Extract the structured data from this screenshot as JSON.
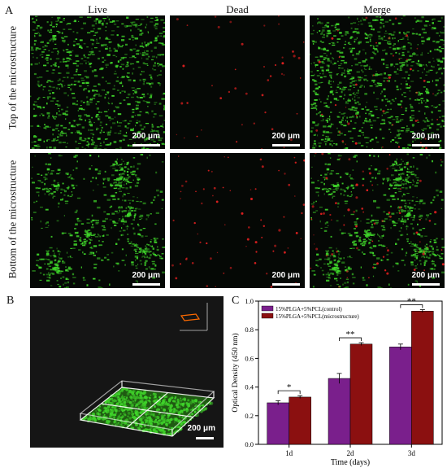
{
  "panels": {
    "a": "A",
    "b": "B",
    "c": "C"
  },
  "columns": [
    "Live",
    "Dead",
    "Merge"
  ],
  "rows": [
    "Top of the microstructure",
    "Bottom of the microstructure"
  ],
  "scale_label": "200 μm",
  "panel_b": {
    "scale_label": "200 μm"
  },
  "colors": {
    "live": "#3fd32a",
    "dead": "#e02020",
    "control": "#7a1f8c",
    "micro": "#8b1010"
  },
  "chart_data": {
    "type": "bar",
    "categories": [
      "1d",
      "2d",
      "3d"
    ],
    "xlabel": "Time (days)",
    "ylabel": "Optical Density (450 nm)",
    "ylim": [
      0,
      1.0
    ],
    "yticks": [
      "0.0",
      "0.2",
      "0.4",
      "0.6",
      "0.8",
      "1.0"
    ],
    "legend_position": "top-left",
    "series": [
      {
        "name": "15%PLGA+5%PCL(control)",
        "values": [
          0.29,
          0.46,
          0.68
        ],
        "errors": [
          0.015,
          0.035,
          0.02
        ]
      },
      {
        "name": "15%PLGA+5%PCL(microstructure)",
        "values": [
          0.33,
          0.7,
          0.93
        ],
        "errors": [
          0.01,
          0.01,
          0.01
        ]
      }
    ],
    "annotations": [
      "*",
      "**",
      "**"
    ]
  }
}
